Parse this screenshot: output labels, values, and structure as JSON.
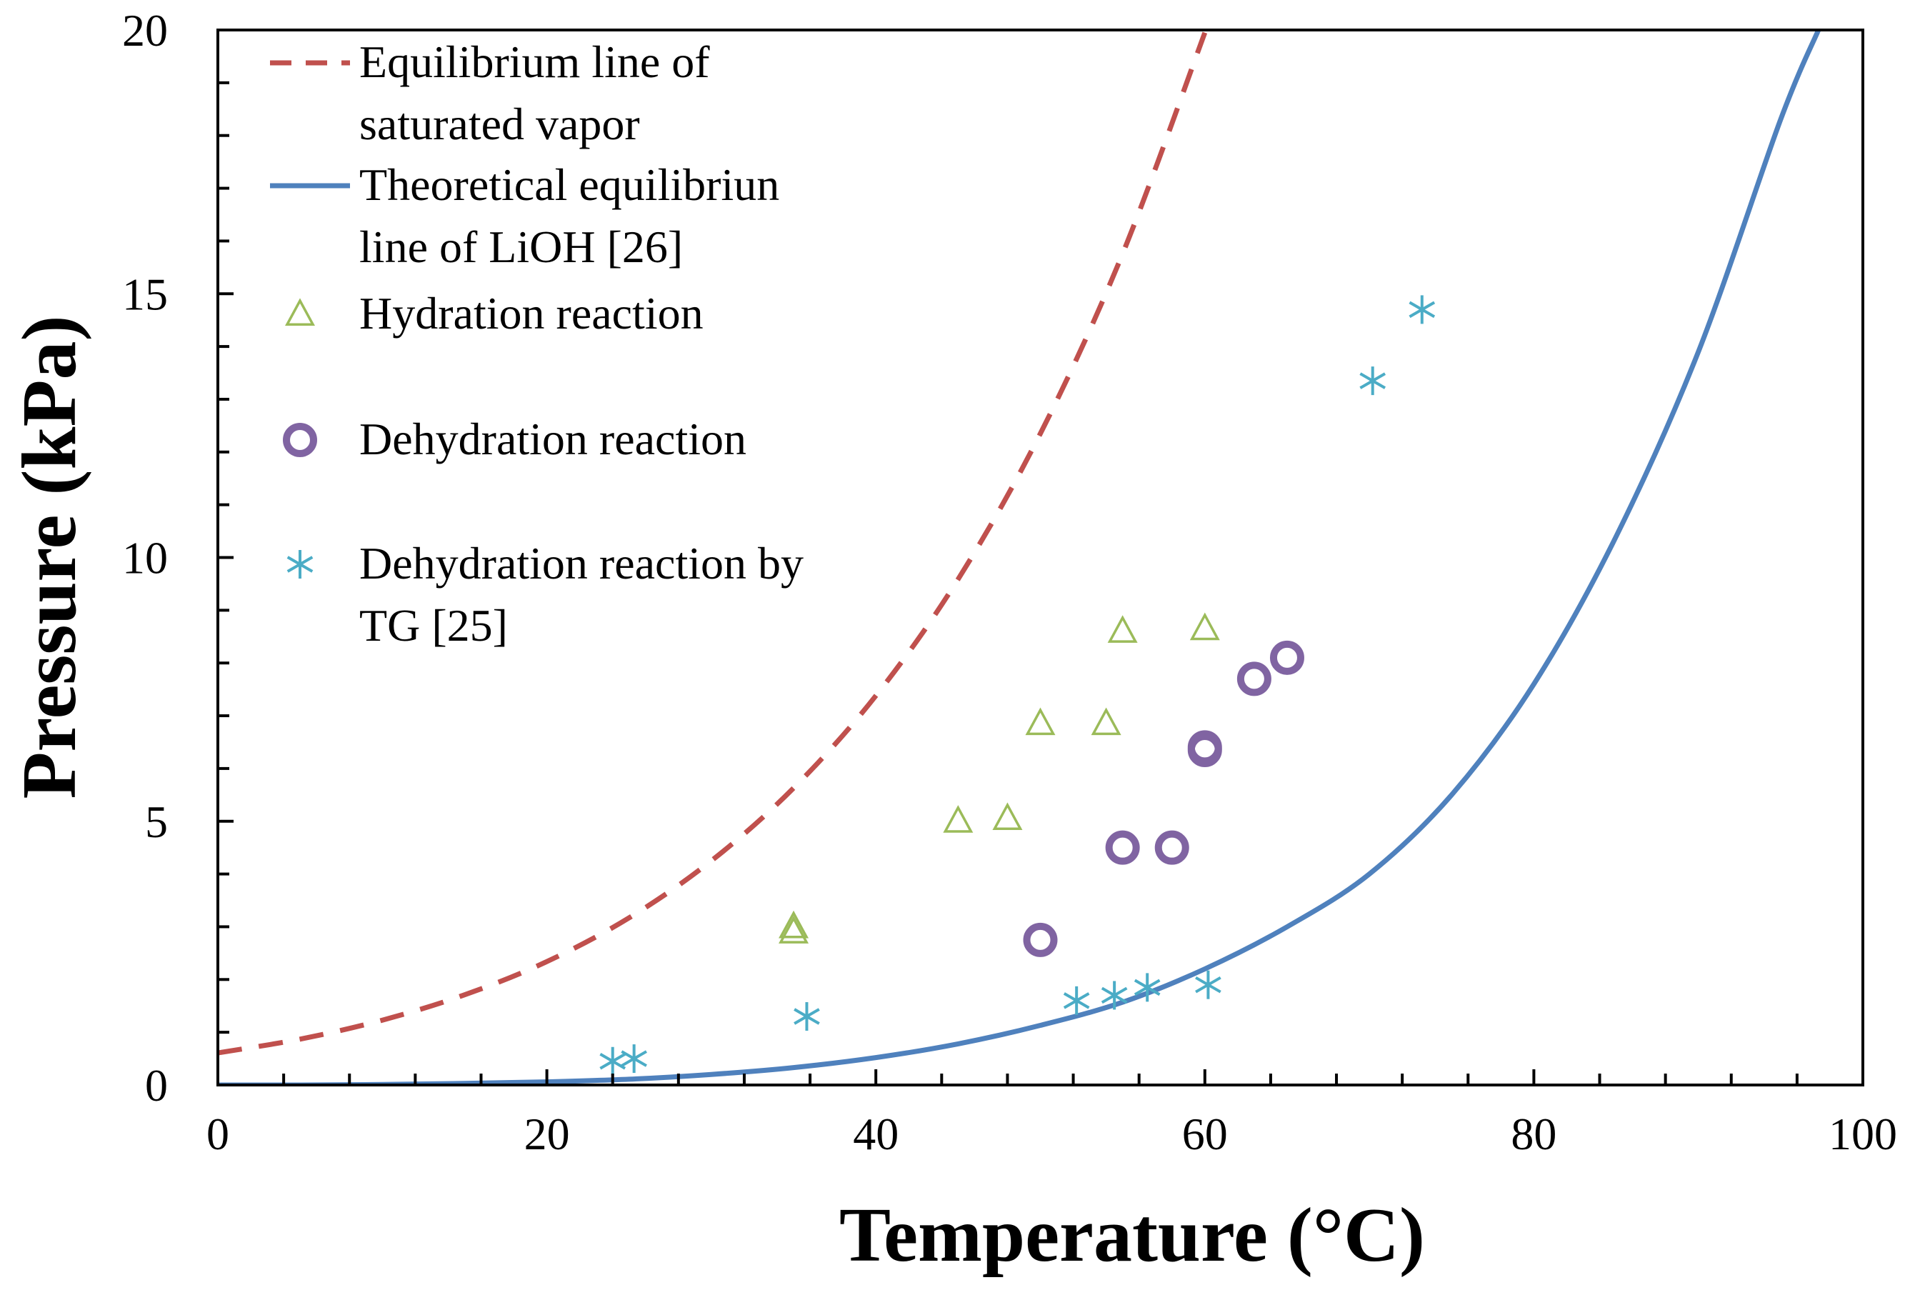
{
  "chart_data": {
    "type": "scatter",
    "title": "",
    "xlabel": "Temperature (°C)",
    "ylabel": "Pressure (kPa)",
    "xlim": [
      0,
      100
    ],
    "ylim": [
      0,
      20
    ],
    "x_ticks": [
      0,
      20,
      40,
      60,
      80,
      100
    ],
    "y_ticks": [
      0,
      5,
      10,
      15,
      20
    ],
    "x_tick_labels": [
      "0",
      "20",
      "40",
      "60",
      "80",
      "100"
    ],
    "y_tick_labels": [
      "0",
      "5",
      "10",
      "15",
      "20"
    ],
    "x_minor_step": 4,
    "y_minor_step": 1,
    "grid": false,
    "legend_position": "top-left",
    "series": [
      {
        "name": "Equilibrium line of saturated vapor",
        "label_lines": [
          "Equilibrium line of",
          "saturated vapor"
        ],
        "kind": "line",
        "style": "dashed",
        "color": "#c0504d",
        "x": [
          0,
          5,
          10,
          15,
          20,
          25,
          30,
          35,
          40,
          45,
          50,
          55,
          60
        ],
        "y": [
          0.61,
          0.87,
          1.23,
          1.71,
          2.34,
          3.17,
          4.25,
          5.63,
          7.38,
          9.59,
          12.35,
          15.76,
          19.95
        ]
      },
      {
        "name": "Theoretical equilibriun line of LiOH [26]",
        "label_lines": [
          "Theoretical equilibriun",
          "line of LiOH [26]"
        ],
        "kind": "line",
        "style": "solid",
        "color": "#4f81bd",
        "x": [
          0,
          5,
          10,
          15,
          20,
          25,
          30,
          35,
          40,
          45,
          50,
          55,
          60,
          65,
          70,
          75,
          80,
          85,
          90,
          95,
          97.3
        ],
        "y": [
          0.0,
          0.0,
          0.01,
          0.03,
          0.06,
          0.11,
          0.2,
          0.33,
          0.52,
          0.78,
          1.13,
          1.57,
          2.2,
          3.0,
          4.0,
          5.5,
          7.6,
          10.4,
          13.9,
          18.3,
          20.0
        ]
      },
      {
        "name": "Hydration reaction",
        "label_lines": [
          "Hydration reaction"
        ],
        "kind": "scatter",
        "marker": "triangle",
        "color": "#9bbb59",
        "x": [
          35,
          35,
          45,
          48,
          50,
          54,
          55,
          60
        ],
        "y": [
          2.9,
          3.0,
          5.0,
          5.05,
          6.85,
          6.85,
          8.6,
          8.65
        ]
      },
      {
        "name": "Dehydration reaction",
        "label_lines": [
          "Dehydration reaction"
        ],
        "kind": "scatter",
        "marker": "circle",
        "color": "#8064a2",
        "x": [
          50,
          55,
          58,
          60,
          60,
          63,
          65
        ],
        "y": [
          2.75,
          4.5,
          4.5,
          6.35,
          6.4,
          7.7,
          8.1
        ]
      },
      {
        "name": "Dehydration reaction by TG [25]",
        "label_lines": [
          "Dehydration reaction by",
          "TG [25]"
        ],
        "kind": "scatter",
        "marker": "asterisk",
        "color": "#4bacc6",
        "x": [
          24,
          25.3,
          35.8,
          52.2,
          54.5,
          56.5,
          60.2,
          70.2,
          73.2
        ],
        "y": [
          0.45,
          0.5,
          1.3,
          1.6,
          1.7,
          1.85,
          1.9,
          13.35,
          14.7
        ]
      }
    ]
  }
}
